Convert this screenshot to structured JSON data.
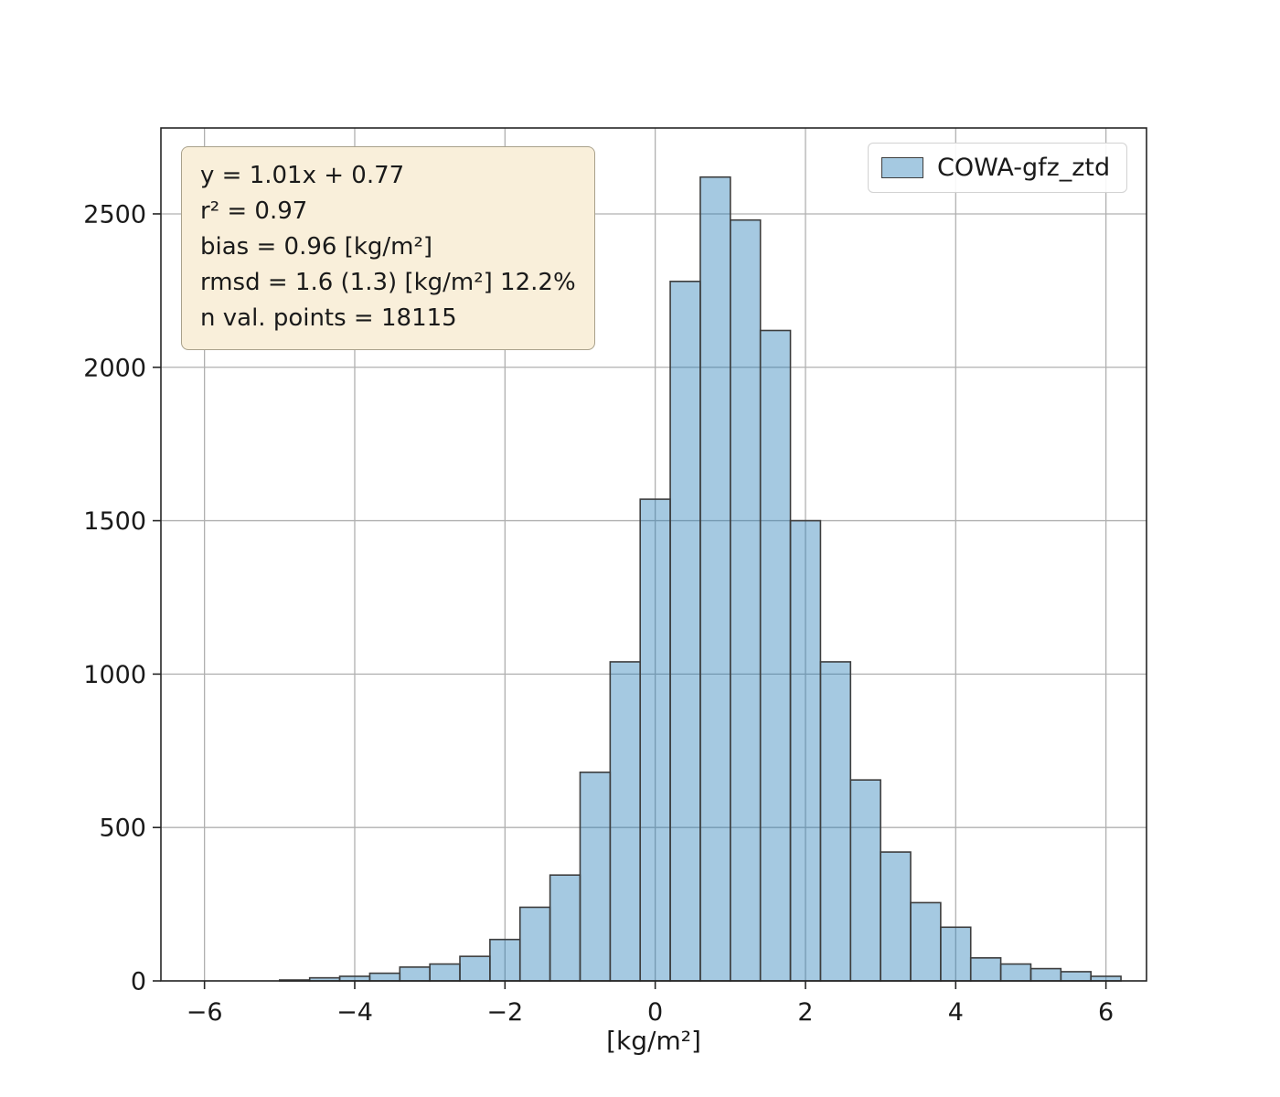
{
  "figure": {
    "background": "#ffffff"
  },
  "chart_data": {
    "type": "bar",
    "subtype": "histogram",
    "title": "",
    "xlabel": "[kg/m²]",
    "ylabel": "",
    "xlim": [
      -6.58,
      6.54
    ],
    "ylim": [
      0,
      2780
    ],
    "grid": true,
    "legend_position": "upper right",
    "bin_edges": [
      -5.0,
      -4.6,
      -4.2,
      -3.8,
      -3.4,
      -3.0,
      -2.6,
      -2.2,
      -1.8,
      -1.4,
      -1.0,
      -0.6,
      -0.2,
      0.2,
      0.6,
      1.0,
      1.4,
      1.8,
      2.2,
      2.6,
      3.0,
      3.4,
      3.8,
      4.2,
      4.6,
      5.0,
      5.4,
      5.8,
      6.2
    ],
    "counts": [
      3,
      10,
      15,
      25,
      45,
      55,
      80,
      135,
      240,
      345,
      680,
      1040,
      1570,
      2280,
      2620,
      2480,
      2120,
      1500,
      1040,
      655,
      420,
      255,
      175,
      75,
      55,
      40,
      30,
      15
    ],
    "xticks": [
      {
        "v": -6,
        "label": "−6"
      },
      {
        "v": -4,
        "label": "−4"
      },
      {
        "v": -2,
        "label": "−2"
      },
      {
        "v": 0,
        "label": "0"
      },
      {
        "v": 2,
        "label": "2"
      },
      {
        "v": 4,
        "label": "4"
      },
      {
        "v": 6,
        "label": "6"
      }
    ],
    "yticks": [
      {
        "v": 0,
        "label": "0"
      },
      {
        "v": 500,
        "label": "500"
      },
      {
        "v": 1000,
        "label": "1000"
      },
      {
        "v": 1500,
        "label": "1500"
      },
      {
        "v": 2000,
        "label": "2000"
      },
      {
        "v": 2500,
        "label": "2500"
      }
    ]
  },
  "annotation": {
    "lines": [
      "y = 1.01x + 0.77",
      "r² = 0.97",
      "bias = 0.96 [kg/m²]",
      "rmsd = 1.6 (1.3) [kg/m²] 12.2%",
      "n val. points = 18115"
    ]
  },
  "legend": {
    "label": "COWA-gfz_ztd"
  },
  "colors": {
    "bar_fill": "#1f77b4",
    "bar_fill_opacity": 0.4,
    "bar_edge": "#3d3d3d",
    "grid": "#b0b0b0",
    "spine": "#262626",
    "tick": "#262626",
    "text": "#1a1a1a",
    "annotation_bg": "#f9efda",
    "annotation_border": "#a9a18b"
  }
}
